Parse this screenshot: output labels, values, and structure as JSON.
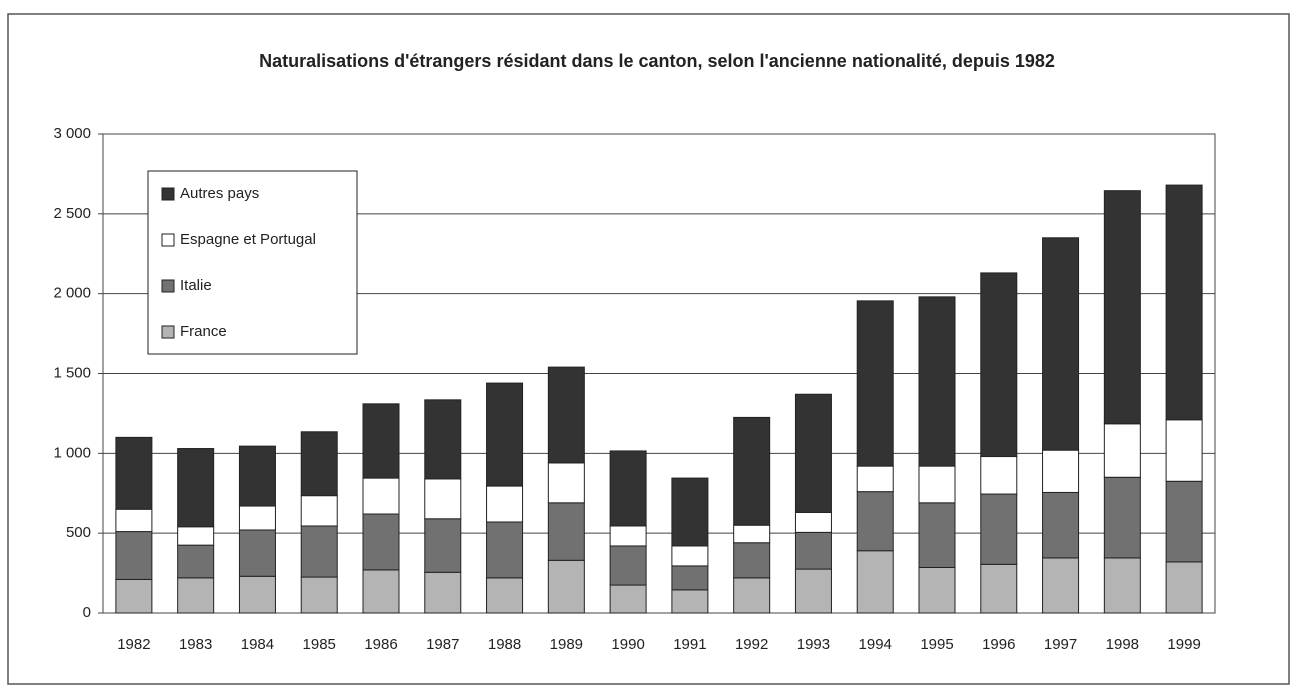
{
  "chart_data": {
    "type": "stacked-bar",
    "title": "Naturalisations d'étrangers résidant dans le canton, selon l'ancienne nationalité, depuis 1982",
    "categories": [
      "1982",
      "1983",
      "1984",
      "1985",
      "1986",
      "1987",
      "1988",
      "1989",
      "1990",
      "1991",
      "1992",
      "1993",
      "1994",
      "1995",
      "1996",
      "1997",
      "1998",
      "1999"
    ],
    "series": [
      {
        "name": "France",
        "color": "#b4b4b4",
        "values": [
          210,
          220,
          230,
          225,
          270,
          255,
          220,
          330,
          175,
          145,
          220,
          275,
          390,
          285,
          305,
          345,
          345,
          320
        ]
      },
      {
        "name": "Italie",
        "color": "#717171",
        "values": [
          300,
          205,
          290,
          320,
          350,
          335,
          350,
          360,
          245,
          150,
          220,
          230,
          370,
          405,
          440,
          410,
          505,
          505
        ]
      },
      {
        "name": "Espagne et Portugal",
        "color": "#ffffff",
        "values": [
          140,
          115,
          150,
          190,
          225,
          250,
          225,
          250,
          125,
          125,
          110,
          125,
          160,
          230,
          235,
          265,
          335,
          385
        ]
      },
      {
        "name": "Autres pays",
        "color": "#333333",
        "values": [
          450,
          490,
          375,
          400,
          465,
          495,
          645,
          600,
          470,
          425,
          675,
          740,
          1035,
          1060,
          1150,
          1330,
          1460,
          1470
        ]
      }
    ],
    "ylim": [
      0,
      3000
    ],
    "yticks": [
      0,
      500,
      {
        "value": 1000,
        "label": "1 000"
      },
      {
        "value": 1500,
        "label": "1 500"
      },
      {
        "value": 2000,
        "label": "2 000"
      },
      {
        "value": 2500,
        "label": "2 500"
      },
      {
        "value": 3000,
        "label": "3 000"
      }
    ],
    "grid": true,
    "legend": "upper-left"
  }
}
